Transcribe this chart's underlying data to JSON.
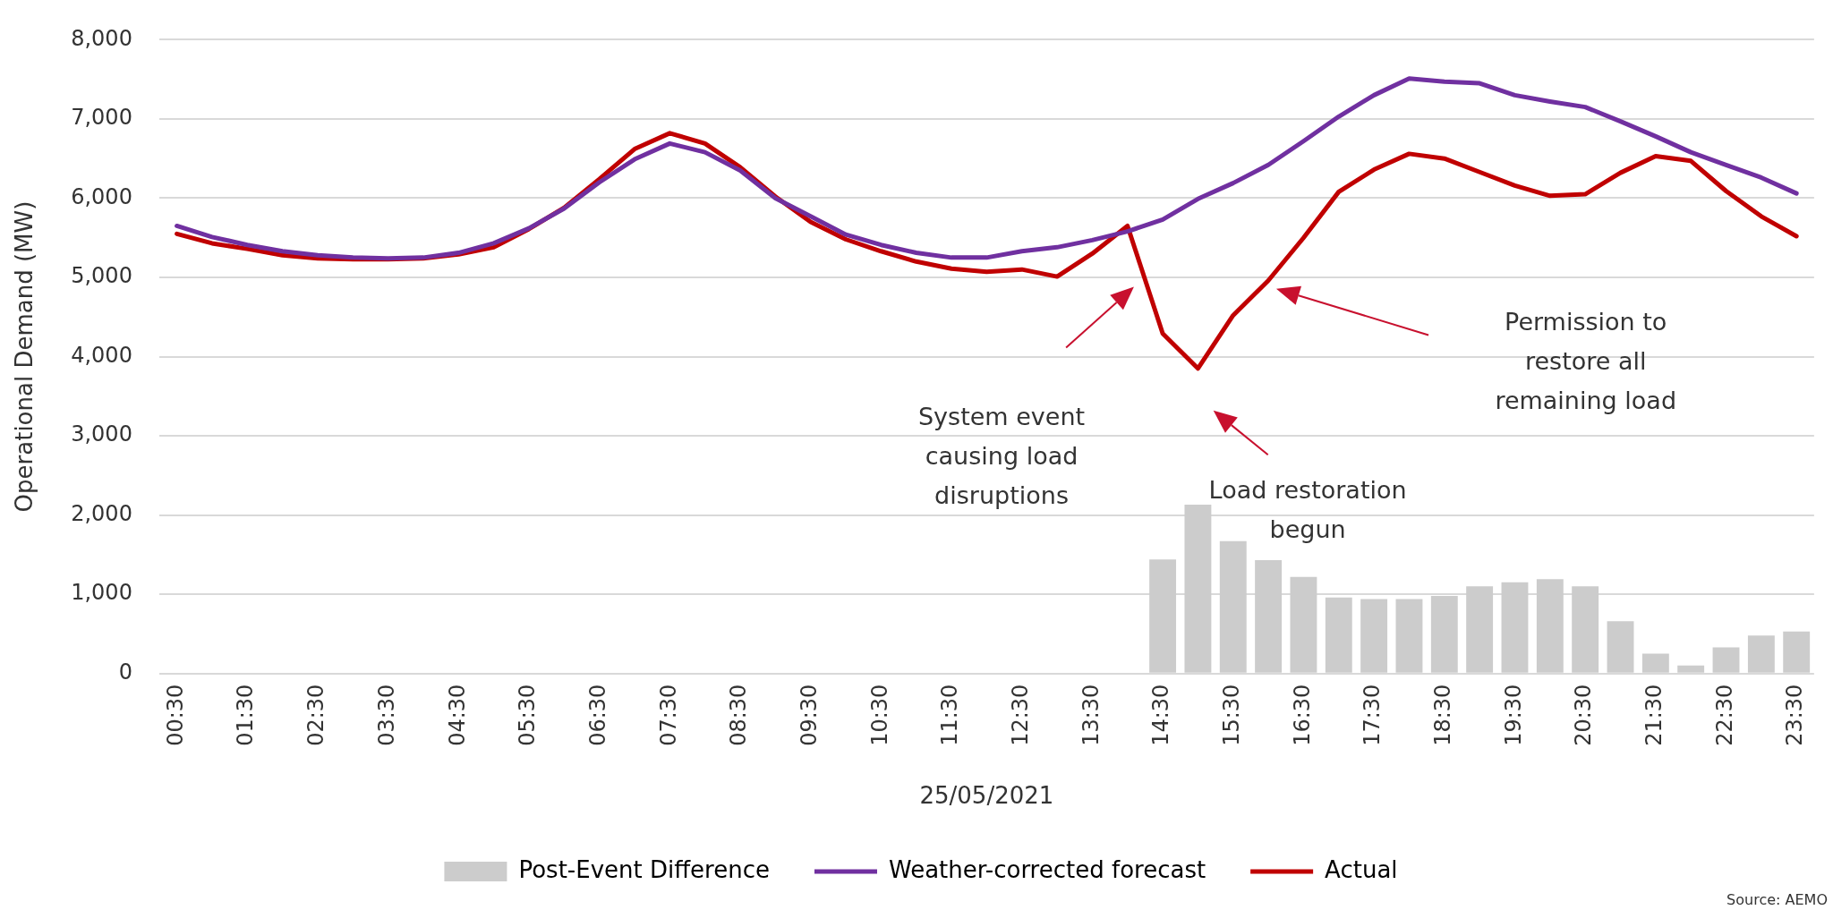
{
  "chart_data": {
    "type": "line",
    "xlabel": "25/05/2021",
    "ylabel": "Operational Demand (MW)",
    "categories": [
      "00:30",
      null,
      "01:30",
      null,
      "02:30",
      null,
      "03:30",
      null,
      "04:30",
      null,
      "05:30",
      null,
      "06:30",
      null,
      "07:30",
      null,
      "08:30",
      null,
      "09:30",
      null,
      "10:30",
      null,
      "11:30",
      null,
      "12:30",
      null,
      "13:30",
      null,
      "14:30",
      null,
      "15:30",
      null,
      "16:30",
      null,
      "17:30",
      null,
      "18:30",
      null,
      "19:30",
      null,
      "20:30",
      null,
      "21:30",
      null,
      "22:30",
      null,
      "23:30"
    ],
    "series": [
      {
        "name": "Post-Event Difference",
        "type": "bar",
        "color": "#cccccc",
        "values": [
          null,
          null,
          null,
          null,
          null,
          null,
          null,
          null,
          null,
          null,
          null,
          null,
          null,
          null,
          null,
          null,
          null,
          null,
          null,
          null,
          null,
          null,
          null,
          null,
          null,
          null,
          null,
          null,
          1440,
          2130,
          1670,
          1430,
          1220,
          960,
          940,
          940,
          980,
          1100,
          1150,
          1190,
          1100,
          660,
          250,
          100,
          330,
          480,
          530
        ]
      },
      {
        "name": "Weather-corrected forecast",
        "color": "#7030a0",
        "values": [
          5650,
          5510,
          5410,
          5330,
          5280,
          5250,
          5240,
          5250,
          5310,
          5430,
          5620,
          5870,
          6200,
          6490,
          6690,
          6580,
          6350,
          6000,
          5770,
          5540,
          5410,
          5310,
          5250,
          5250,
          5330,
          5380,
          5470,
          5580,
          5730,
          5990,
          6190,
          6420,
          6720,
          7030,
          7300,
          7510,
          7470,
          7450,
          7300,
          7220,
          7150,
          6970,
          6780,
          6580,
          6420,
          6260,
          6060
        ]
      },
      {
        "name": "Actual",
        "color": "#c00000",
        "values": [
          5550,
          5430,
          5360,
          5280,
          5240,
          5230,
          5230,
          5240,
          5290,
          5380,
          5610,
          5880,
          6240,
          6620,
          6820,
          6690,
          6390,
          6020,
          5700,
          5480,
          5330,
          5200,
          5110,
          5070,
          5100,
          5010,
          5300,
          5650,
          4290,
          3850,
          4520,
          4960,
          5500,
          6080,
          6360,
          6560,
          6500,
          6330,
          6160,
          6030,
          6050,
          6320,
          6530,
          6470,
          6090,
          5770,
          5520
        ]
      }
    ],
    "ylim": [
      0,
      8000
    ],
    "yticks": [
      0,
      {
        "value": 1000,
        "label": "1,000"
      },
      {
        "value": 2000,
        "label": "2,000"
      },
      {
        "value": 3000,
        "label": "3,000"
      },
      {
        "value": 4000,
        "label": "4,000"
      },
      {
        "value": 5000,
        "label": "5,000"
      },
      {
        "value": 6000,
        "label": "6,000"
      },
      {
        "value": 7000,
        "label": "7,000"
      },
      {
        "value": 8000,
        "label": "8,000"
      }
    ],
    "grid": "y",
    "legend": "bottom",
    "marker": "none",
    "line_style": "solid",
    "annotations": [
      "System event\ncausing load\ndisruptions",
      "Load restoration\nbegun",
      "Permission to\nrestore all\nremaining load",
      "Source: AEMO"
    ]
  }
}
